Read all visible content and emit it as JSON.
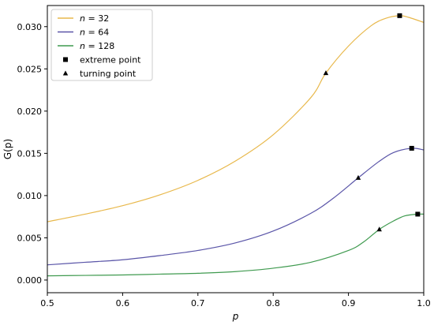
{
  "chart_data": {
    "type": "line",
    "title": "",
    "xlabel": "p",
    "ylabel": "G(p)",
    "xlim": [
      0.5,
      1.0
    ],
    "ylim": [
      -0.0015,
      0.0325
    ],
    "x_ticks": [
      0.5,
      0.6,
      0.7,
      0.8,
      0.9,
      1.0
    ],
    "x_tick_labels": [
      "0.5",
      "0.6",
      "0.7",
      "0.8",
      "0.9",
      "1.0"
    ],
    "y_ticks": [
      0.0,
      0.005,
      0.01,
      0.015,
      0.02,
      0.025,
      0.03
    ],
    "y_tick_labels": [
      "0.000",
      "0.005",
      "0.010",
      "0.015",
      "0.020",
      "0.025",
      "0.030"
    ],
    "grid": false,
    "legend_position": "top-left",
    "legend": [
      {
        "label_var": "n",
        "label_rest": " = 32",
        "kind": "line",
        "color": "#e8b84b"
      },
      {
        "label_var": "n",
        "label_rest": " = 64",
        "kind": "line",
        "color": "#5a55a8"
      },
      {
        "label_var": "n",
        "label_rest": " = 128",
        "kind": "line",
        "color": "#3f9a4f"
      },
      {
        "label_var": "",
        "label_rest": "extreme point",
        "kind": "square",
        "color": "#000000"
      },
      {
        "label_var": "",
        "label_rest": "turning point",
        "kind": "triangle",
        "color": "#000000"
      }
    ],
    "series": [
      {
        "name": "n = 32",
        "color": "#e8b84b",
        "x": [
          0.5,
          0.55,
          0.6,
          0.65,
          0.7,
          0.75,
          0.8,
          0.85,
          0.87,
          0.9,
          0.93,
          0.95,
          0.968,
          0.98,
          1.0
        ],
        "y": [
          0.0069,
          0.0078,
          0.0088,
          0.0101,
          0.0118,
          0.0141,
          0.0172,
          0.0216,
          0.0245,
          0.0277,
          0.0301,
          0.031,
          0.0313,
          0.0311,
          0.0305
        ],
        "extreme_point": [
          0.968,
          0.0313
        ],
        "turning_point": [
          0.87,
          0.0245
        ]
      },
      {
        "name": "n = 64",
        "color": "#5a55a8",
        "x": [
          0.5,
          0.55,
          0.6,
          0.65,
          0.7,
          0.75,
          0.8,
          0.85,
          0.88,
          0.913,
          0.94,
          0.96,
          0.984,
          1.0
        ],
        "y": [
          0.0018,
          0.0021,
          0.0024,
          0.0029,
          0.0035,
          0.0044,
          0.0058,
          0.0079,
          0.0097,
          0.0121,
          0.014,
          0.0151,
          0.0156,
          0.0154
        ],
        "extreme_point": [
          0.984,
          0.0156
        ],
        "turning_point": [
          0.913,
          0.0121
        ]
      },
      {
        "name": "n = 128",
        "color": "#3f9a4f",
        "x": [
          0.5,
          0.55,
          0.6,
          0.65,
          0.7,
          0.75,
          0.8,
          0.85,
          0.9,
          0.92,
          0.941,
          0.96,
          0.975,
          0.992,
          1.0
        ],
        "y": [
          0.0005,
          0.00055,
          0.0006,
          0.0007,
          0.0008,
          0.001,
          0.0014,
          0.0021,
          0.0035,
          0.0045,
          0.006,
          0.007,
          0.0076,
          0.0078,
          0.0078
        ],
        "extreme_point": [
          0.992,
          0.0078
        ],
        "turning_point": [
          0.941,
          0.006
        ]
      }
    ]
  }
}
